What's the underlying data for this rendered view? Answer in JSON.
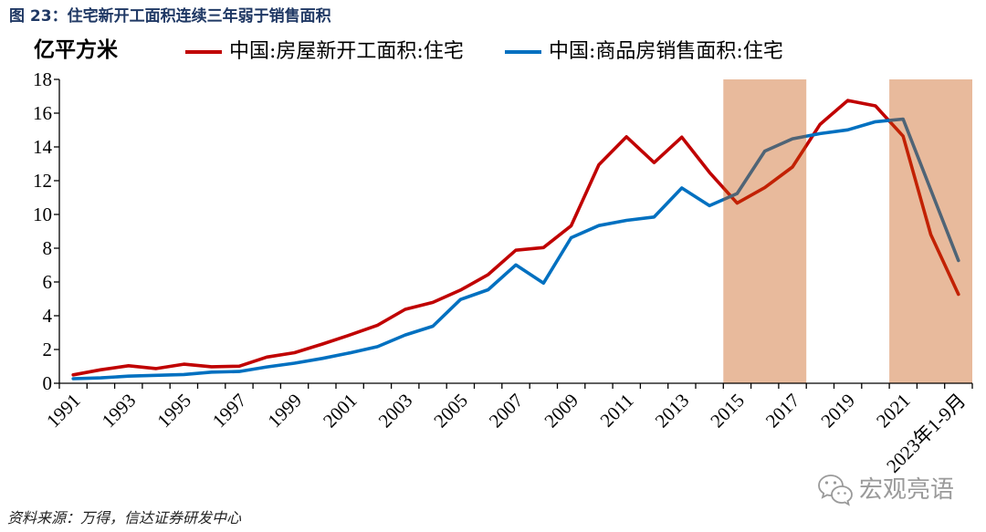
{
  "figure": {
    "source": "资料来源：万得，信达证券研发中心",
    "watermark": {
      "text": "宏观亮语",
      "icon": "wechat-icon"
    }
  },
  "chart_data": {
    "type": "line",
    "title": "图 23：住宅新开工面积连续三年弱于销售面积",
    "title_color": "#1F3864",
    "ylabel": "亿平方米",
    "ylim": [
      0,
      18
    ],
    "yticks": [
      0,
      2,
      4,
      6,
      8,
      10,
      12,
      14,
      16,
      18
    ],
    "x": [
      1991,
      1992,
      1993,
      1994,
      1995,
      1996,
      1997,
      1998,
      1999,
      2000,
      2001,
      2002,
      2003,
      2004,
      2005,
      2006,
      2007,
      2008,
      2009,
      2010,
      2011,
      2012,
      2013,
      2014,
      2015,
      2016,
      2017,
      2018,
      2019,
      2020,
      2021,
      2022,
      2023
    ],
    "x_ticks": [
      {
        "x": 1991,
        "label": "1991"
      },
      {
        "x": 1993,
        "label": "1993"
      },
      {
        "x": 1995,
        "label": "1995"
      },
      {
        "x": 1997,
        "label": "1997"
      },
      {
        "x": 1999,
        "label": "1999"
      },
      {
        "x": 2001,
        "label": "2001"
      },
      {
        "x": 2003,
        "label": "2003"
      },
      {
        "x": 2005,
        "label": "2005"
      },
      {
        "x": 2007,
        "label": "2007"
      },
      {
        "x": 2009,
        "label": "2009"
      },
      {
        "x": 2011,
        "label": "2011"
      },
      {
        "x": 2013,
        "label": "2013"
      },
      {
        "x": 2015,
        "label": "2015"
      },
      {
        "x": 2017,
        "label": "2017"
      },
      {
        "x": 2019,
        "label": "2019"
      },
      {
        "x": 2021,
        "label": "2021"
      },
      {
        "x": 2023,
        "label": "2023年1-9月"
      }
    ],
    "legend_position": "top",
    "grid": false,
    "series": [
      {
        "name": "中国:房屋新开工面积:住宅",
        "color": "#C00000",
        "values": [
          0.5,
          0.8,
          1.04,
          0.87,
          1.13,
          0.98,
          1.01,
          1.55,
          1.81,
          2.32,
          2.86,
          3.44,
          4.38,
          4.79,
          5.52,
          6.44,
          7.88,
          8.04,
          9.33,
          12.94,
          14.6,
          13.07,
          14.58,
          12.49,
          10.67,
          11.59,
          12.81,
          15.34,
          16.75,
          16.43,
          14.64,
          8.81,
          5.27
        ]
      },
      {
        "name": "中国:商品房销售面积:住宅",
        "color": "#0070C0",
        "values": [
          0.27,
          0.32,
          0.42,
          0.47,
          0.52,
          0.66,
          0.7,
          0.97,
          1.19,
          1.47,
          1.8,
          2.17,
          2.86,
          3.38,
          4.96,
          5.54,
          7.01,
          5.93,
          8.62,
          9.34,
          9.65,
          9.85,
          11.57,
          10.52,
          11.24,
          13.75,
          14.48,
          14.79,
          15.01,
          15.49,
          15.65,
          11.46,
          7.27
        ]
      }
    ],
    "shaded_ranges": [
      [
        2015,
        2017
      ],
      [
        2021,
        2023
      ]
    ],
    "shade_color": "#C55207"
  }
}
